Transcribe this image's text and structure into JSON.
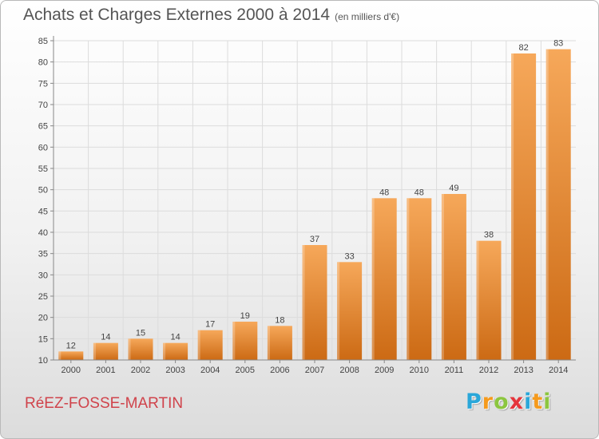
{
  "title": "Achats et Charges Externes 2000 à 2014",
  "unit": "(en milliers d'€)",
  "commune": "RéEZ-FOSSE-MARTIN",
  "brand": {
    "letters": [
      "P",
      "r",
      "o",
      "x",
      "i",
      "t",
      "i"
    ],
    "colors": [
      "#2aa7d9",
      "#f59a1d",
      "#8cc63f",
      "#e5353c",
      "#2aa7d9",
      "#f59a1d",
      "#8cc63f"
    ]
  },
  "colors": {
    "bar_top": "#f6a85a",
    "bar_bottom": "#cc6a14",
    "title": "#555555",
    "commune": "#d0434b",
    "grid": "#dcdcdc"
  },
  "chart_data": {
    "type": "bar",
    "categories": [
      "2000",
      "2001",
      "2002",
      "2003",
      "2004",
      "2005",
      "2006",
      "2007",
      "2008",
      "2009",
      "2010",
      "2011",
      "2012",
      "2013",
      "2014"
    ],
    "values": [
      12,
      14,
      15,
      14,
      17,
      19,
      18,
      37,
      33,
      48,
      48,
      49,
      38,
      82,
      83
    ],
    "ylim": [
      10,
      85
    ],
    "yticks": [
      10,
      15,
      20,
      25,
      30,
      35,
      40,
      45,
      50,
      55,
      60,
      65,
      70,
      75,
      80,
      85
    ],
    "grid": true,
    "data_labels": true
  }
}
